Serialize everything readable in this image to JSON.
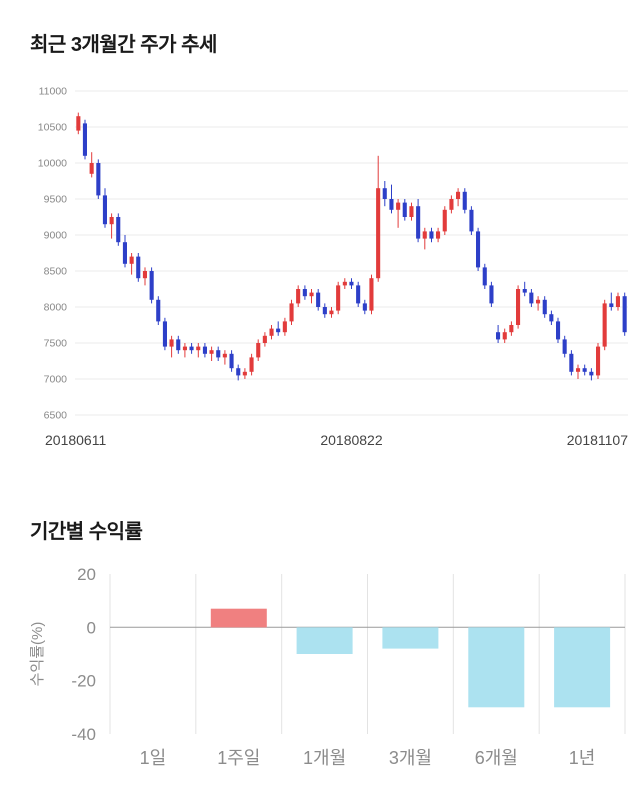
{
  "price_section": {
    "title": "최근 3개월간 주가 추세"
  },
  "returns_section": {
    "title": "기간별 수익률"
  },
  "chart_data": [
    {
      "type": "candlestick",
      "title": "최근 3개월간 주가 추세",
      "x_tick_labels": [
        "20180611",
        "20180822",
        "20181107"
      ],
      "y_ticks": [
        6500,
        7000,
        7500,
        8000,
        8500,
        9000,
        9500,
        10000,
        10500,
        11000
      ],
      "ylim": [
        6500,
        11000
      ],
      "grid": "on",
      "colors": {
        "up": "#e23b3b",
        "down": "#2d3fc8",
        "grid_line": "#ebebeb",
        "y_tick_text": "#888888",
        "x_tick_text": "#444444"
      },
      "candles": [
        [
          10450,
          10700,
          10400,
          10650
        ],
        [
          10550,
          10600,
          10050,
          10100
        ],
        [
          9850,
          10150,
          9800,
          10000
        ],
        [
          10000,
          10050,
          9500,
          9550
        ],
        [
          9550,
          9650,
          9100,
          9150
        ],
        [
          9150,
          9300,
          8950,
          9250
        ],
        [
          9250,
          9300,
          8850,
          8900
        ],
        [
          8900,
          9000,
          8550,
          8600
        ],
        [
          8600,
          8750,
          8450,
          8700
        ],
        [
          8700,
          8750,
          8350,
          8400
        ],
        [
          8400,
          8550,
          8300,
          8500
        ],
        [
          8500,
          8550,
          8050,
          8100
        ],
        [
          8100,
          8150,
          7750,
          7800
        ],
        [
          7800,
          7850,
          7400,
          7450
        ],
        [
          7450,
          7600,
          7300,
          7550
        ],
        [
          7550,
          7600,
          7350,
          7400
        ],
        [
          7400,
          7500,
          7300,
          7450
        ],
        [
          7450,
          7500,
          7350,
          7400
        ],
        [
          7400,
          7500,
          7300,
          7450
        ],
        [
          7450,
          7500,
          7300,
          7350
        ],
        [
          7350,
          7450,
          7250,
          7400
        ],
        [
          7400,
          7450,
          7250,
          7300
        ],
        [
          7300,
          7400,
          7200,
          7350
        ],
        [
          7350,
          7400,
          7100,
          7150
        ],
        [
          7150,
          7200,
          6980,
          7050
        ],
        [
          7050,
          7150,
          7000,
          7100
        ],
        [
          7100,
          7350,
          7050,
          7300
        ],
        [
          7300,
          7550,
          7250,
          7500
        ],
        [
          7500,
          7650,
          7450,
          7600
        ],
        [
          7600,
          7750,
          7550,
          7700
        ],
        [
          7700,
          7800,
          7600,
          7650
        ],
        [
          7650,
          7850,
          7600,
          7800
        ],
        [
          7800,
          8100,
          7750,
          8050
        ],
        [
          8050,
          8300,
          8000,
          8250
        ],
        [
          8250,
          8300,
          8100,
          8150
        ],
        [
          8150,
          8250,
          8050,
          8200
        ],
        [
          8200,
          8250,
          7950,
          8000
        ],
        [
          8000,
          8050,
          7850,
          7900
        ],
        [
          7900,
          8000,
          7850,
          7950
        ],
        [
          7950,
          8350,
          7900,
          8300
        ],
        [
          8300,
          8400,
          8250,
          8350
        ],
        [
          8350,
          8400,
          8250,
          8300
        ],
        [
          8300,
          8350,
          8000,
          8050
        ],
        [
          8050,
          8100,
          7900,
          7950
        ],
        [
          7950,
          8450,
          7900,
          8400
        ],
        [
          8400,
          10100,
          8350,
          9650
        ],
        [
          9650,
          9750,
          9400,
          9500
        ],
        [
          9500,
          9700,
          9300,
          9350
        ],
        [
          9350,
          9500,
          9100,
          9450
        ],
        [
          9450,
          9500,
          9200,
          9250
        ],
        [
          9250,
          9450,
          9200,
          9400
        ],
        [
          9400,
          9500,
          8900,
          8950
        ],
        [
          8950,
          9100,
          8800,
          9050
        ],
        [
          9050,
          9100,
          8900,
          8950
        ],
        [
          8950,
          9100,
          8900,
          9050
        ],
        [
          9050,
          9400,
          9000,
          9350
        ],
        [
          9350,
          9550,
          9300,
          9500
        ],
        [
          9500,
          9650,
          9400,
          9600
        ],
        [
          9600,
          9650,
          9300,
          9350
        ],
        [
          9350,
          9400,
          9000,
          9050
        ],
        [
          9050,
          9100,
          8500,
          8550
        ],
        [
          8550,
          8600,
          8250,
          8300
        ],
        [
          8300,
          8350,
          8000,
          8050
        ],
        [
          7650,
          7750,
          7500,
          7550
        ],
        [
          7550,
          7700,
          7500,
          7650
        ],
        [
          7650,
          7800,
          7600,
          7750
        ],
        [
          7750,
          8300,
          7700,
          8250
        ],
        [
          8250,
          8350,
          8150,
          8200
        ],
        [
          8200,
          8250,
          8000,
          8050
        ],
        [
          8050,
          8150,
          7950,
          8100
        ],
        [
          8100,
          8150,
          7850,
          7900
        ],
        [
          7900,
          7950,
          7750,
          7800
        ],
        [
          7800,
          7850,
          7500,
          7550
        ],
        [
          7550,
          7600,
          7300,
          7350
        ],
        [
          7350,
          7400,
          7050,
          7100
        ],
        [
          7100,
          7200,
          7000,
          7150
        ],
        [
          7150,
          7200,
          7050,
          7100
        ],
        [
          7100,
          7150,
          6980,
          7050
        ],
        [
          7050,
          7500,
          7000,
          7450
        ],
        [
          7450,
          8100,
          7400,
          8050
        ],
        [
          8050,
          8200,
          7950,
          8000
        ],
        [
          8000,
          8200,
          7950,
          8150
        ],
        [
          8150,
          8200,
          7600,
          7650
        ]
      ]
    },
    {
      "type": "bar",
      "title": "기간별 수익률",
      "ylabel": "수익률(%)",
      "categories": [
        "1일",
        "1주일",
        "1개월",
        "3개월",
        "6개월",
        "1년"
      ],
      "values": [
        0,
        7,
        -10,
        -8,
        -30,
        -30
      ],
      "y_ticks": [
        20,
        0,
        -20,
        -40
      ],
      "ylim": [
        -40,
        20
      ],
      "legend": "none",
      "colors": {
        "positive": "#f08080",
        "negative": "#ace2f0",
        "grid_line": "#e3e3e3",
        "zero_line": "#9a9a9a",
        "tick_text": "#8c8c8c"
      }
    }
  ]
}
